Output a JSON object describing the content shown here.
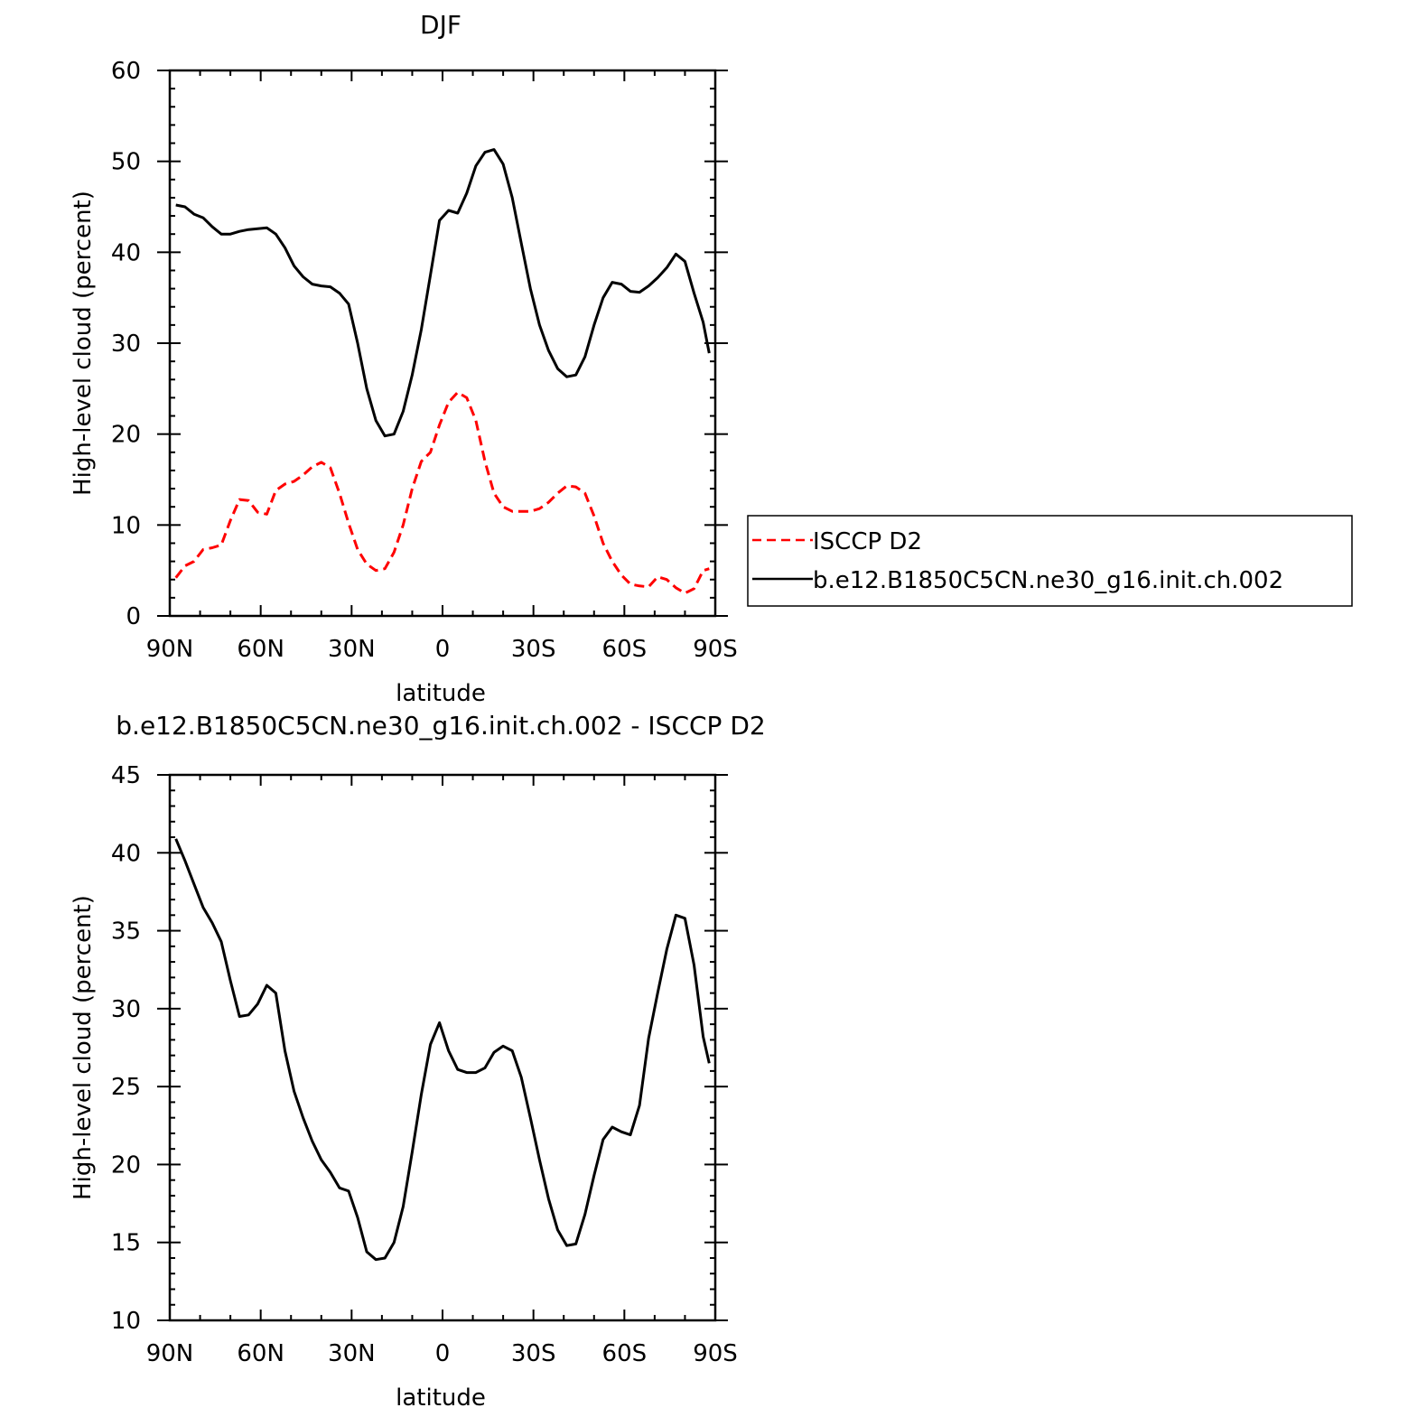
{
  "chart_data": [
    {
      "type": "line",
      "title": "DJF",
      "xlabel": "latitude",
      "ylabel": "High-level cloud (percent)",
      "xlim": [
        -90,
        90
      ],
      "ylim": [
        0,
        60
      ],
      "x_ticks": [
        -90,
        -60,
        -30,
        0,
        30,
        60,
        90
      ],
      "x_tick_labels": [
        "90N",
        "60N",
        "30N",
        "0",
        "30S",
        "60S",
        "90S"
      ],
      "y_ticks": [
        0,
        10,
        20,
        30,
        40,
        50,
        60
      ],
      "y_tick_labels": [
        "0",
        "10",
        "20",
        "30",
        "40",
        "50",
        "60"
      ],
      "grid": false,
      "legend_position": "right, outside plot",
      "series": [
        {
          "name": "ISCCP D2",
          "color": "#ff0000",
          "dash": "dashed",
          "x": [
            -88,
            -85,
            -82,
            -79,
            -76,
            -73,
            -70,
            -67,
            -64,
            -61,
            -58,
            -55,
            -52,
            -49,
            -46,
            -43,
            -40,
            -37,
            -34,
            -31,
            -28,
            -25,
            -22,
            -19,
            -16,
            -13,
            -10,
            -7,
            -4,
            -1,
            2,
            5,
            8,
            11,
            14,
            17,
            20,
            23,
            26,
            29,
            32,
            35,
            38,
            41,
            44,
            47,
            50,
            53,
            56,
            59,
            62,
            65,
            68,
            71,
            74,
            77,
            80,
            83,
            86,
            88
          ],
          "y": [
            4.2,
            5.5,
            6.0,
            7.3,
            7.5,
            7.8,
            10.5,
            12.8,
            12.7,
            11.4,
            11.2,
            13.8,
            14.5,
            14.8,
            15.5,
            16.4,
            16.9,
            16.3,
            13.5,
            10.2,
            7.3,
            5.7,
            5.0,
            5.2,
            7.0,
            10.0,
            14.0,
            17.0,
            18.0,
            21.0,
            23.5,
            24.6,
            24.0,
            21.5,
            17.0,
            13.5,
            12.0,
            11.5,
            11.5,
            11.5,
            11.8,
            12.5,
            13.5,
            14.3,
            14.2,
            13.5,
            11.0,
            8.0,
            6.0,
            4.5,
            3.5,
            3.3,
            3.2,
            4.3,
            4.0,
            3.1,
            2.5,
            3.0,
            5.0,
            5.2
          ]
        },
        {
          "name": "b.e12.B1850C5CN.ne30_g16.init.ch.002",
          "color": "#000000",
          "dash": "solid",
          "x": [
            -88,
            -85,
            -82,
            -79,
            -76,
            -73,
            -70,
            -67,
            -64,
            -61,
            -58,
            -55,
            -52,
            -49,
            -46,
            -43,
            -40,
            -37,
            -34,
            -31,
            -28,
            -25,
            -22,
            -19,
            -16,
            -13,
            -10,
            -7,
            -4,
            -1,
            2,
            5,
            8,
            11,
            14,
            17,
            20,
            23,
            26,
            29,
            32,
            35,
            38,
            41,
            44,
            47,
            50,
            53,
            56,
            59,
            62,
            65,
            68,
            71,
            74,
            77,
            80,
            83,
            86,
            88
          ],
          "y": [
            45.2,
            45.0,
            44.2,
            43.8,
            42.8,
            42.0,
            42.0,
            42.3,
            42.5,
            42.6,
            42.7,
            42.0,
            40.5,
            38.5,
            37.3,
            36.5,
            36.3,
            36.2,
            35.5,
            34.3,
            30.0,
            25.0,
            21.5,
            19.8,
            20.0,
            22.5,
            26.5,
            31.5,
            37.5,
            43.5,
            44.6,
            44.3,
            46.5,
            49.5,
            51.0,
            51.3,
            49.7,
            46.0,
            41.0,
            36.0,
            32.0,
            29.2,
            27.2,
            26.3,
            26.5,
            28.5,
            32.0,
            35.0,
            36.7,
            36.5,
            35.7,
            35.6,
            36.3,
            37.2,
            38.3,
            39.8,
            39.0,
            35.5,
            32.3,
            28.9
          ]
        }
      ]
    },
    {
      "type": "line",
      "title": "b.e12.B1850C5CN.ne30_g16.init.ch.002 - ISCCP D2",
      "xlabel": "latitude",
      "ylabel": "High-level cloud (percent)",
      "xlim": [
        -90,
        90
      ],
      "ylim": [
        10,
        45
      ],
      "x_ticks": [
        -90,
        -60,
        -30,
        0,
        30,
        60,
        90
      ],
      "x_tick_labels": [
        "90N",
        "60N",
        "30N",
        "0",
        "30S",
        "60S",
        "90S"
      ],
      "y_ticks": [
        10,
        15,
        20,
        25,
        30,
        35,
        40,
        45
      ],
      "y_tick_labels": [
        "10",
        "15",
        "20",
        "25",
        "30",
        "35",
        "40",
        "45"
      ],
      "grid": false,
      "series": [
        {
          "color": "#000000",
          "dash": "solid",
          "x": [
            -88,
            -85,
            -82,
            -79,
            -76,
            -73,
            -70,
            -67,
            -64,
            -61,
            -58,
            -55,
            -52,
            -49,
            -46,
            -43,
            -40,
            -37,
            -34,
            -31,
            -28,
            -25,
            -22,
            -19,
            -16,
            -13,
            -10,
            -7,
            -4,
            -1,
            2,
            5,
            8,
            11,
            14,
            17,
            20,
            23,
            26,
            29,
            32,
            35,
            38,
            41,
            44,
            47,
            50,
            53,
            56,
            59,
            62,
            65,
            68,
            71,
            74,
            77,
            80,
            83,
            86,
            88
          ],
          "y": [
            40.9,
            39.5,
            38.0,
            36.5,
            35.5,
            34.3,
            31.8,
            29.5,
            29.6,
            30.3,
            31.5,
            31.0,
            27.3,
            24.7,
            23.0,
            21.5,
            20.3,
            19.5,
            18.5,
            18.3,
            16.6,
            14.4,
            13.9,
            14.0,
            15.0,
            17.3,
            20.8,
            24.5,
            27.7,
            29.1,
            27.3,
            26.1,
            25.9,
            25.9,
            26.2,
            27.2,
            27.6,
            27.3,
            25.6,
            23.0,
            20.3,
            17.8,
            15.8,
            14.8,
            14.9,
            16.8,
            19.3,
            21.6,
            22.4,
            22.1,
            21.9,
            23.8,
            28.1,
            31.0,
            33.8,
            36.0,
            35.8,
            32.8,
            28.2,
            26.5
          ]
        }
      ]
    }
  ]
}
